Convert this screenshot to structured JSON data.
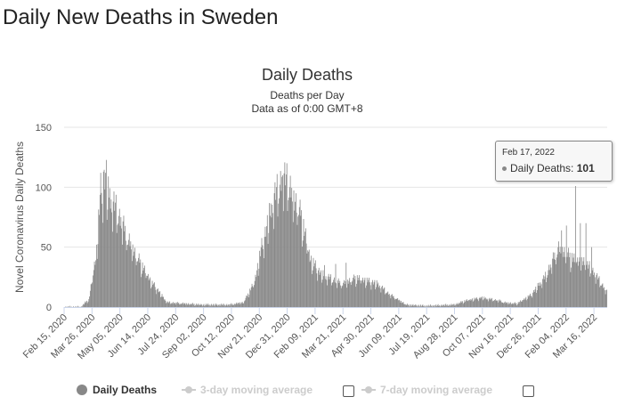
{
  "page": {
    "heading": "Daily New Deaths in Sweden"
  },
  "chart_data": {
    "type": "bar",
    "title": "Daily Deaths",
    "subtitle_line1": "Deaths per Day",
    "subtitle_line2": "Data as of 0:00 GMT+8",
    "ylabel": "Novel Coronavirus Daily Deaths",
    "ylim": [
      0,
      150
    ],
    "yticks": [
      0,
      50,
      100,
      150
    ],
    "x_start": "2020-02-15",
    "x_end": "2022-04-04",
    "xtick_labels": [
      "Feb 15, 2020",
      "Mar 26, 2020",
      "May 05, 2020",
      "Jun 14, 2020",
      "Jul 24, 2020",
      "Sep 02, 2020",
      "Oct 12, 2020",
      "Nov 21, 2020",
      "Dec 31, 2020",
      "Feb 09, 2021",
      "Mar 21, 2021",
      "Apr 30, 2021",
      "Jun 09, 2021",
      "Jul 19, 2021",
      "Aug 28, 2021",
      "Oct 07, 2021",
      "Nov 16, 2021",
      "Dec 26, 2021",
      "Feb 04, 2022",
      "Mar 16, 2022"
    ],
    "bar_color": "#888888",
    "series": [
      {
        "name": "Daily Deaths",
        "note": "Approximate daily values read off the chart, grouped as [start_date, num_days, start_value, end_value] linear segments",
        "segments": [
          [
            "2020-02-15",
            25,
            0,
            0
          ],
          [
            "2020-03-11",
            10,
            1,
            6
          ],
          [
            "2020-03-21",
            10,
            6,
            40
          ],
          [
            "2020-03-31",
            8,
            40,
            100
          ],
          [
            "2020-04-08",
            8,
            100,
            112
          ],
          [
            "2020-04-16",
            10,
            100,
            88
          ],
          [
            "2020-04-26",
            10,
            88,
            75
          ],
          [
            "2020-05-06",
            12,
            75,
            56
          ],
          [
            "2020-05-18",
            14,
            56,
            40
          ],
          [
            "2020-06-01",
            20,
            40,
            20
          ],
          [
            "2020-06-21",
            20,
            20,
            5
          ],
          [
            "2020-07-11",
            50,
            4,
            2
          ],
          [
            "2020-08-30",
            40,
            2,
            2
          ],
          [
            "2020-10-09",
            20,
            2,
            4
          ],
          [
            "2020-10-29",
            15,
            4,
            20
          ],
          [
            "2020-11-13",
            15,
            20,
            60
          ],
          [
            "2020-11-28",
            15,
            60,
            95
          ],
          [
            "2020-12-13",
            12,
            95,
            110
          ],
          [
            "2020-12-25",
            10,
            110,
            100
          ],
          [
            "2021-01-04",
            15,
            100,
            80
          ],
          [
            "2021-01-19",
            15,
            80,
            40
          ],
          [
            "2021-02-03",
            15,
            40,
            28
          ],
          [
            "2021-02-18",
            30,
            28,
            20
          ],
          [
            "2021-03-20",
            20,
            20,
            25
          ],
          [
            "2021-04-09",
            30,
            25,
            20
          ],
          [
            "2021-05-09",
            20,
            20,
            10
          ],
          [
            "2021-05-29",
            20,
            10,
            3
          ],
          [
            "2021-06-18",
            30,
            2,
            1
          ],
          [
            "2021-07-18",
            40,
            1,
            2
          ],
          [
            "2021-08-27",
            20,
            2,
            6
          ],
          [
            "2021-09-16",
            20,
            6,
            8
          ],
          [
            "2021-10-06",
            30,
            8,
            5
          ],
          [
            "2021-11-05",
            20,
            4,
            3
          ],
          [
            "2021-11-25",
            20,
            3,
            10
          ],
          [
            "2021-12-15",
            20,
            10,
            25
          ],
          [
            "2022-01-04",
            20,
            25,
            50
          ],
          [
            "2022-01-24",
            25,
            50,
            40
          ],
          [
            "2022-02-18",
            20,
            40,
            35
          ],
          [
            "2022-03-10",
            26,
            35,
            12
          ]
        ],
        "overrides": [
          [
            "2020-04-11",
            113
          ],
          [
            "2020-04-14",
            112
          ],
          [
            "2020-12-30",
            120
          ],
          [
            "2020-12-24",
            110
          ],
          [
            "2021-02-22",
            35
          ],
          [
            "2021-03-10",
            36
          ],
          [
            "2021-03-25",
            37
          ],
          [
            "2022-01-28",
            64
          ],
          [
            "2022-02-04",
            68
          ],
          [
            "2022-02-17",
            101
          ],
          [
            "2022-02-24",
            70
          ],
          [
            "2022-03-04",
            70
          ],
          [
            "2022-03-12",
            50
          ]
        ]
      }
    ]
  },
  "tooltip": {
    "date": "Feb 17, 2022",
    "label": "Daily Deaths:",
    "value": "101"
  },
  "legend": {
    "items": [
      {
        "label": "Daily Deaths",
        "color": "#888888",
        "active": true
      },
      {
        "label": "3-day moving average",
        "color": "#cccccc",
        "active": false
      },
      {
        "label": "7-day moving average",
        "color": "#cccccc",
        "active": false
      }
    ]
  }
}
